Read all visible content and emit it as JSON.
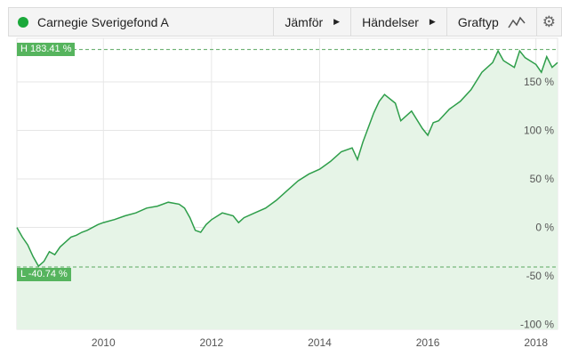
{
  "toolbar": {
    "title": "Carnegie Sverigefond A",
    "dot_color": "#1aa83a",
    "compare_label": "Jämför",
    "events_label": "Händelser",
    "graph_type_label": "Graftyp",
    "graph_type_icon": "line-chart-icon",
    "settings_icon": "gear-icon"
  },
  "chart_data": {
    "type": "area",
    "title": "",
    "xlabel": "",
    "ylabel": "",
    "x_ticks": [
      "2010",
      "2012",
      "2014",
      "2016",
      "2018"
    ],
    "y_ticks": [
      "150 %",
      "100 %",
      "50 %",
      "0 %",
      "-50 %",
      "-100 %"
    ],
    "y_tick_values": [
      150,
      100,
      50,
      0,
      -50,
      -100
    ],
    "xlim": [
      2008.4,
      2018.4
    ],
    "ylim": [
      -105,
      195
    ],
    "high_label": "H 183.41 %",
    "high_value": 183.41,
    "low_label": "L -40.74 %",
    "low_value": -40.74,
    "line_color": "#2e9e4a",
    "fill_color": "#e6f4e7",
    "grid": true,
    "series": [
      {
        "x": [
          2008.4,
          2008.5,
          2008.6,
          2008.7,
          2008.8,
          2008.9,
          2009.0,
          2009.1,
          2009.2,
          2009.3,
          2009.4,
          2009.5,
          2009.6,
          2009.7,
          2009.8,
          2009.9,
          2010.0,
          2010.2,
          2010.4,
          2010.6,
          2010.8,
          2011.0,
          2011.2,
          2011.4,
          2011.5,
          2011.6,
          2011.7,
          2011.8,
          2011.9,
          2012.0,
          2012.2,
          2012.4,
          2012.5,
          2012.6,
          2012.8,
          2013.0,
          2013.2,
          2013.4,
          2013.6,
          2013.8,
          2014.0,
          2014.2,
          2014.4,
          2014.6,
          2014.7,
          2014.8,
          2015.0,
          2015.1,
          2015.2,
          2015.4,
          2015.5,
          2015.7,
          2015.9,
          2016.0,
          2016.1,
          2016.2,
          2016.4,
          2016.6,
          2016.8,
          2017.0,
          2017.2,
          2017.3,
          2017.4,
          2017.6,
          2017.7,
          2017.8,
          2018.0,
          2018.1,
          2018.2,
          2018.3,
          2018.4
        ],
        "values": [
          0,
          -10,
          -18,
          -30,
          -40,
          -35,
          -25,
          -28,
          -20,
          -15,
          -10,
          -8,
          -5,
          -3,
          0,
          3,
          5,
          8,
          12,
          15,
          20,
          22,
          26,
          24,
          20,
          10,
          -3,
          -5,
          3,
          8,
          15,
          12,
          5,
          10,
          15,
          20,
          28,
          38,
          48,
          55,
          60,
          68,
          78,
          82,
          70,
          88,
          118,
          130,
          137,
          128,
          110,
          120,
          102,
          95,
          108,
          110,
          122,
          130,
          142,
          160,
          170,
          182,
          172,
          165,
          182,
          175,
          168,
          160,
          176,
          165,
          170
        ]
      }
    ]
  }
}
